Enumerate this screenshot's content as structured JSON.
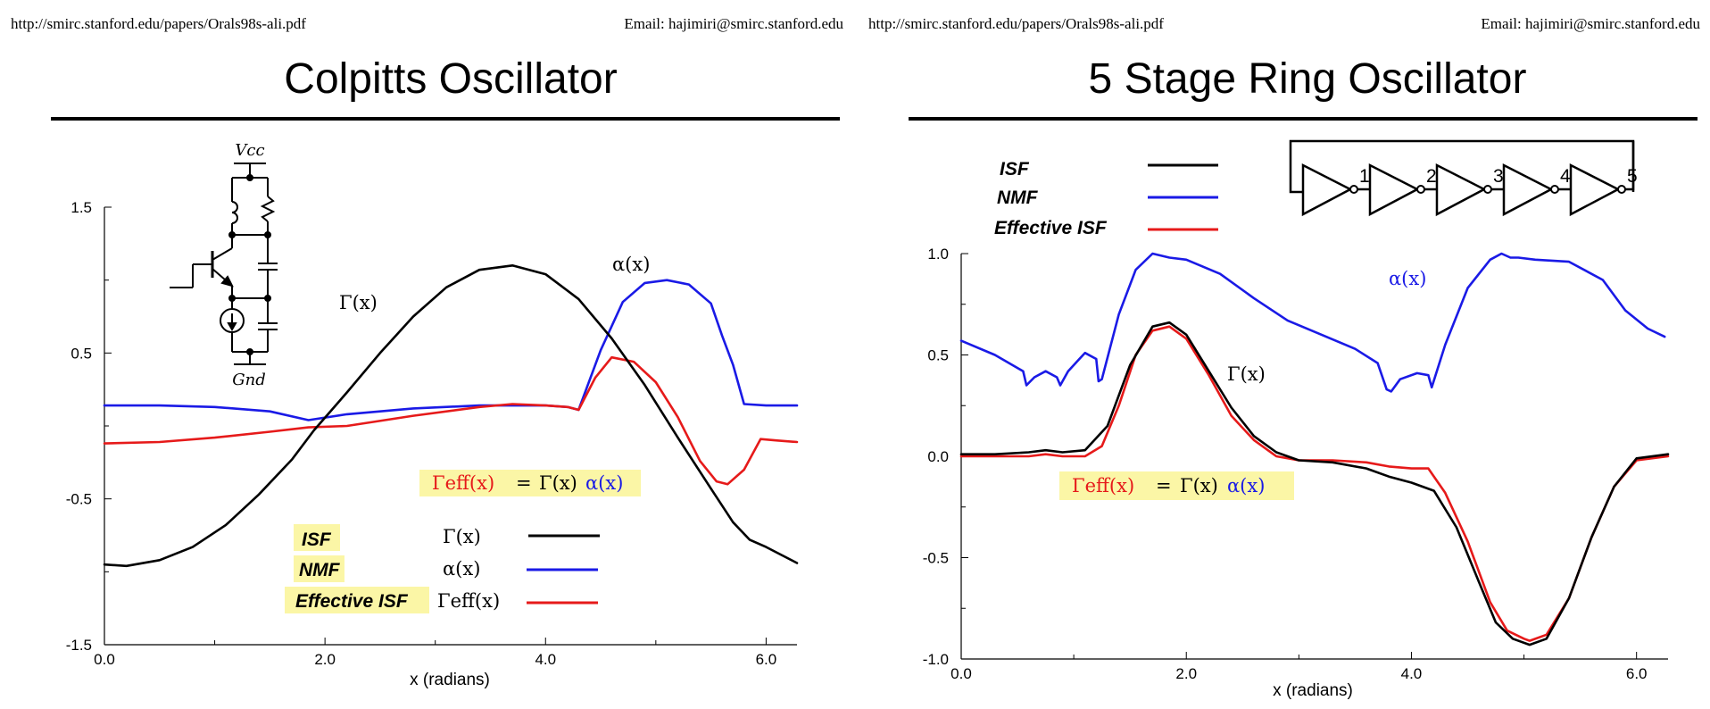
{
  "left": {
    "url": "http://smirc.stanford.edu/papers/Orals98s-ali.pdf",
    "email": "Email: hajimiri@smirc.stanford.edu",
    "title": "Colpitts Oscillator",
    "circuit": {
      "vcc": "Vcc",
      "gnd": "Gnd"
    },
    "labels": {
      "gamma": "Γ(x)",
      "alpha": "α(x)"
    },
    "equation": {
      "lhs": "Γeff(x)",
      "eq": "=",
      "rhs_gamma": "Γ(x)",
      "rhs_alpha": "α(x)"
    },
    "legend": [
      {
        "name": "ISF",
        "symbol": "Γ(x)",
        "color": "#000000"
      },
      {
        "name": "NMF",
        "symbol": "α(x)",
        "color": "#1a1ae6"
      },
      {
        "name": "Effective ISF",
        "symbol": "Γeff(x)",
        "color": "#e61a1a"
      }
    ]
  },
  "right": {
    "url": "http://smirc.stanford.edu/papers/Orals98s-ali.pdf",
    "email": "Email: hajimiri@smirc.stanford.edu",
    "title": "5 Stage Ring Oscillator",
    "stages": [
      "1",
      "2",
      "3",
      "4",
      "5"
    ],
    "labels": {
      "gamma": "Γ(x)",
      "alpha": "α(x)"
    },
    "equation": {
      "lhs": "Γeff(x)",
      "eq": "=",
      "rhs_gamma": "Γ(x)",
      "rhs_alpha": "α(x)"
    },
    "legend": [
      {
        "name": "ISF",
        "color": "#000000"
      },
      {
        "name": "NMF",
        "color": "#1a1ae6"
      },
      {
        "name": "Effective ISF",
        "color": "#e61a1a"
      }
    ]
  },
  "colors": {
    "isf": "#000000",
    "nmf": "#1a1ae6",
    "eff": "#e61a1a",
    "highlight": "#fbf6a6"
  },
  "chart_data": [
    {
      "type": "line",
      "title": "Colpitts Oscillator",
      "xlabel": "x (radians)",
      "ylabel": "",
      "xlim": [
        0,
        6.28
      ],
      "ylim": [
        -1.5,
        1.5
      ],
      "xticks": [
        "0.0",
        "2.0",
        "4.0",
        "6.0"
      ],
      "yticks": [
        "1.5",
        "0.5",
        "-0.5",
        "-1.5"
      ],
      "ytick_values": [
        1.5,
        0.5,
        -0.5,
        -1.5
      ],
      "xtick_values": [
        0,
        2,
        4,
        6
      ],
      "series": [
        {
          "name": "ISF",
          "x": [
            0,
            0.2,
            0.5,
            0.8,
            1.1,
            1.4,
            1.7,
            1.9,
            2.2,
            2.5,
            2.8,
            3.1,
            3.4,
            3.7,
            4.0,
            4.3,
            4.6,
            4.9,
            5.2,
            5.5,
            5.7,
            5.85,
            6.0,
            6.28
          ],
          "values": [
            -0.95,
            -0.96,
            -0.92,
            -0.83,
            -0.68,
            -0.47,
            -0.23,
            -0.03,
            0.23,
            0.5,
            0.75,
            0.95,
            1.07,
            1.1,
            1.04,
            0.87,
            0.6,
            0.28,
            -0.08,
            -0.43,
            -0.66,
            -0.78,
            -0.83,
            -0.94
          ]
        },
        {
          "name": "NMF",
          "x": [
            0,
            0.5,
            1.0,
            1.5,
            1.85,
            2.2,
            2.8,
            3.4,
            4.0,
            4.2,
            4.3,
            4.5,
            4.7,
            4.9,
            5.1,
            5.3,
            5.5,
            5.6,
            5.7,
            5.8,
            6.0,
            6.28
          ],
          "values": [
            0.14,
            0.14,
            0.13,
            0.1,
            0.04,
            0.08,
            0.12,
            0.14,
            0.14,
            0.13,
            0.11,
            0.52,
            0.85,
            0.98,
            1.0,
            0.97,
            0.84,
            0.62,
            0.42,
            0.15,
            0.14,
            0.14
          ]
        },
        {
          "name": "Effective ISF",
          "x": [
            0,
            0.5,
            1.0,
            1.5,
            1.85,
            2.2,
            2.8,
            3.4,
            3.7,
            4.0,
            4.2,
            4.3,
            4.45,
            4.6,
            4.8,
            5.0,
            5.2,
            5.4,
            5.55,
            5.65,
            5.8,
            5.95,
            6.1,
            6.28
          ],
          "values": [
            -0.12,
            -0.11,
            -0.08,
            -0.04,
            -0.01,
            0.0,
            0.07,
            0.13,
            0.15,
            0.14,
            0.13,
            0.11,
            0.33,
            0.47,
            0.44,
            0.3,
            0.06,
            -0.24,
            -0.38,
            -0.4,
            -0.3,
            -0.09,
            -0.1,
            -0.11
          ]
        }
      ]
    },
    {
      "type": "line",
      "title": "5 Stage Ring Oscillator",
      "xlabel": "x (radians)",
      "ylabel": "",
      "xlim": [
        0,
        6.28
      ],
      "ylim": [
        -1.0,
        1.0
      ],
      "xticks": [
        "0.0",
        "2.0",
        "4.0",
        "6.0"
      ],
      "yticks": [
        "1.0",
        "0.5",
        "0.0",
        "-0.5",
        "-1.0"
      ],
      "ytick_values": [
        1.0,
        0.5,
        0.0,
        -0.5,
        -1.0
      ],
      "xtick_values": [
        0,
        2,
        4,
        6
      ],
      "series": [
        {
          "name": "ISF",
          "x": [
            0,
            0.3,
            0.6,
            0.75,
            0.9,
            1.1,
            1.3,
            1.5,
            1.7,
            1.85,
            2.0,
            2.2,
            2.4,
            2.6,
            2.8,
            3.0,
            3.3,
            3.6,
            3.8,
            4.0,
            4.2,
            4.4,
            4.6,
            4.75,
            4.9,
            5.05,
            5.2,
            5.4,
            5.6,
            5.8,
            6.0,
            6.28
          ],
          "values": [
            0.01,
            0.01,
            0.02,
            0.03,
            0.02,
            0.03,
            0.15,
            0.45,
            0.64,
            0.66,
            0.6,
            0.42,
            0.24,
            0.1,
            0.02,
            -0.02,
            -0.03,
            -0.06,
            -0.1,
            -0.13,
            -0.17,
            -0.35,
            -0.62,
            -0.82,
            -0.9,
            -0.93,
            -0.9,
            -0.7,
            -0.4,
            -0.15,
            -0.01,
            0.01
          ]
        },
        {
          "name": "NMF",
          "x": [
            0,
            0.3,
            0.55,
            0.58,
            0.65,
            0.75,
            0.85,
            0.88,
            0.95,
            1.05,
            1.1,
            1.2,
            1.22,
            1.25,
            1.4,
            1.55,
            1.7,
            1.85,
            2.0,
            2.3,
            2.6,
            2.9,
            3.2,
            3.5,
            3.7,
            3.78,
            3.82,
            3.9,
            4.05,
            4.15,
            4.18,
            4.3,
            4.5,
            4.7,
            4.8,
            4.88,
            4.95,
            5.1,
            5.4,
            5.7,
            5.9,
            6.1,
            6.25
          ],
          "values": [
            0.57,
            0.5,
            0.42,
            0.35,
            0.39,
            0.42,
            0.39,
            0.35,
            0.42,
            0.48,
            0.51,
            0.48,
            0.37,
            0.38,
            0.7,
            0.92,
            1.0,
            0.98,
            0.97,
            0.9,
            0.78,
            0.67,
            0.6,
            0.53,
            0.46,
            0.33,
            0.32,
            0.38,
            0.41,
            0.4,
            0.34,
            0.55,
            0.83,
            0.97,
            1.0,
            0.98,
            0.98,
            0.97,
            0.96,
            0.87,
            0.72,
            0.63,
            0.59
          ]
        },
        {
          "name": "Effective ISF",
          "x": [
            0,
            0.3,
            0.6,
            0.75,
            0.9,
            1.1,
            1.25,
            1.4,
            1.55,
            1.7,
            1.85,
            2.0,
            2.2,
            2.4,
            2.6,
            2.8,
            3.0,
            3.3,
            3.6,
            3.8,
            4.0,
            4.15,
            4.2,
            4.3,
            4.5,
            4.7,
            4.85,
            5.0,
            5.05,
            5.2,
            5.4,
            5.6,
            5.8,
            6.0,
            6.28
          ],
          "values": [
            0.0,
            0.0,
            0.0,
            0.01,
            0.0,
            0.0,
            0.05,
            0.25,
            0.5,
            0.62,
            0.64,
            0.58,
            0.4,
            0.2,
            0.08,
            0.0,
            -0.02,
            -0.02,
            -0.03,
            -0.05,
            -0.06,
            -0.06,
            -0.1,
            -0.18,
            -0.42,
            -0.72,
            -0.86,
            -0.9,
            -0.91,
            -0.88,
            -0.7,
            -0.4,
            -0.15,
            -0.02,
            0.0
          ]
        }
      ]
    }
  ]
}
